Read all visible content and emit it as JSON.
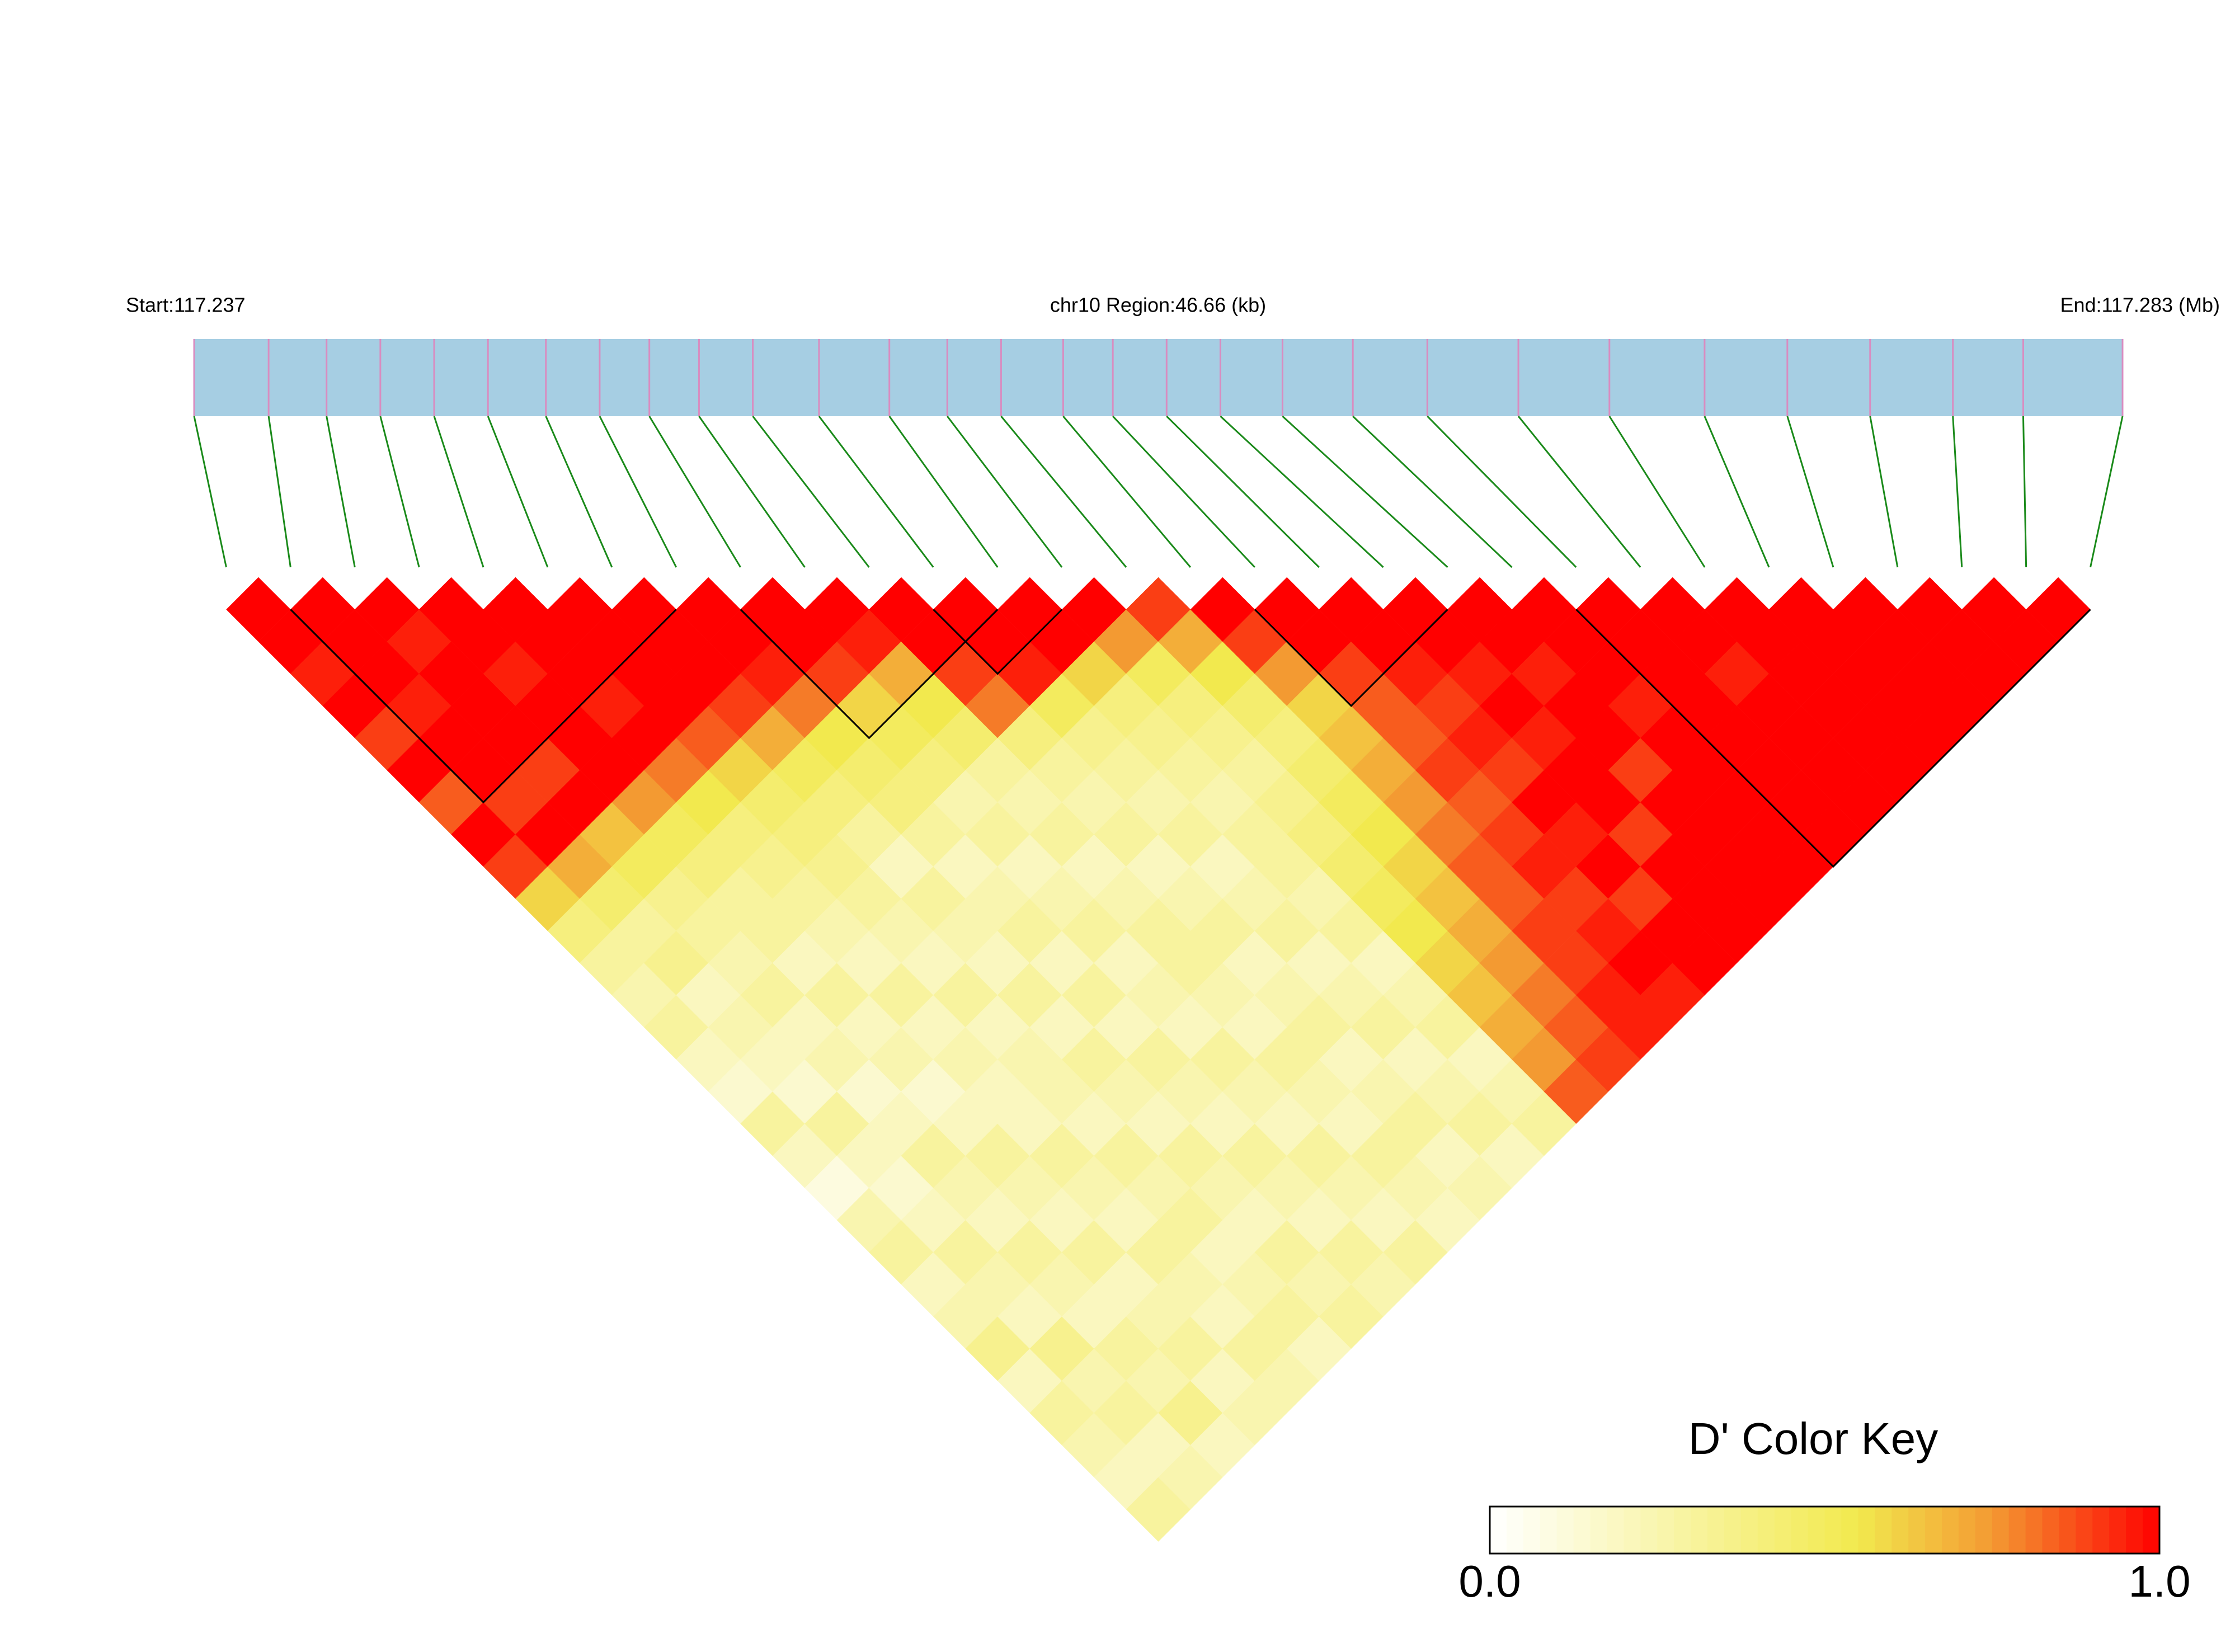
{
  "chart_data": {
    "type": "ld-heatmap",
    "start_label": "Start:117.237",
    "region_label": "chr10 Region:46.66 (kb)",
    "end_label": "End:117.283 (Mb)",
    "colorbar_title": "D' Color Key",
    "colorbar_ticks": [
      {
        "value": 0,
        "label": "0.0"
      },
      {
        "value": 1,
        "label": "1.0"
      }
    ],
    "colors": [
      "#ffffff",
      "#f2e94e",
      "#f39a32",
      "#ff0000"
    ],
    "color_stops": [
      0,
      0.55,
      0.75,
      1
    ],
    "bar_color": "#a6cee3",
    "connector_color": "#1a8a1a",
    "snp_tick_color": "#d98cc0",
    "block_color": "#000000",
    "positions": [
      117.237,
      117.2388,
      117.2402,
      117.2415,
      117.2428,
      117.2441,
      117.2455,
      117.2468,
      117.248,
      117.2492,
      117.2505,
      117.2521,
      117.2538,
      117.2552,
      117.2565,
      117.258,
      117.2592,
      117.2605,
      117.2618,
      117.2633,
      117.265,
      117.2668,
      117.269,
      117.2712,
      117.2735,
      117.2755,
      117.2775,
      117.2795,
      117.2812,
      117.2836
    ],
    "blocks": [
      [
        1,
        7
      ],
      [
        8,
        12
      ],
      [
        11,
        13
      ],
      [
        16,
        19
      ],
      [
        21,
        29
      ]
    ],
    "matrix": [
      [
        1,
        1,
        0.95,
        1,
        0.9,
        1,
        0.85,
        1,
        0.9,
        0.6,
        0.4,
        0.3,
        0.25,
        0.3,
        0.2,
        0.15,
        0.3,
        0.2,
        0.1,
        0.25,
        0.3,
        0.2,
        0.25,
        0.35,
        0.2,
        0.3,
        0.25,
        0.2,
        0.3
      ],
      [
        1,
        1,
        1,
        0.95,
        1,
        1,
        0.9,
        1,
        0.7,
        0.45,
        0.3,
        0.35,
        0.2,
        0.25,
        0.2,
        0.15,
        0.3,
        0.2,
        0.15,
        0.2,
        0.3,
        0.25,
        0.2,
        0.35,
        0.25,
        0.3,
        0.2,
        0.25
      ],
      [
        1,
        0.95,
        1,
        1,
        1,
        0.9,
        1,
        0.65,
        0.5,
        0.35,
        0.3,
        0.25,
        0.3,
        0.2,
        0.25,
        0.15,
        0.2,
        0.3,
        0.25,
        0.2,
        0.3,
        0.25,
        0.2,
        0.3,
        0.25,
        0.35,
        0.2
      ],
      [
        1,
        1,
        0.95,
        1,
        1,
        1,
        0.75,
        0.5,
        0.4,
        0.3,
        0.3,
        0.2,
        0.3,
        0.2,
        0.25,
        0.15,
        0.2,
        0.3,
        0.25,
        0.2,
        0.3,
        0.2,
        0.25,
        0.3,
        0.2,
        0.25
      ],
      [
        1,
        1,
        1,
        0.95,
        1,
        0.8,
        0.55,
        0.4,
        0.35,
        0.3,
        0.25,
        0.2,
        0.3,
        0.2,
        0.25,
        0.2,
        0.2,
        0.3,
        0.25,
        0.2,
        0.3,
        0.25,
        0.2,
        0.3,
        0.25
      ],
      [
        1,
        1,
        1,
        1,
        0.85,
        0.6,
        0.45,
        0.4,
        0.35,
        0.3,
        0.25,
        0.2,
        0.3,
        0.2,
        0.25,
        0.25,
        0.2,
        0.3,
        0.25,
        0.3,
        0.2,
        0.25,
        0.3,
        0.2
      ],
      [
        1,
        1,
        1,
        0.9,
        0.7,
        0.5,
        0.4,
        0.3,
        0.2,
        0.3,
        0.25,
        0.2,
        0.3,
        0.2,
        0.3,
        0.25,
        0.2,
        0.3,
        0.25,
        0.2,
        0.3,
        0.25,
        0.3
      ],
      [
        1,
        1,
        0.95,
        0.8,
        0.55,
        0.45,
        0.4,
        0.3,
        0.2,
        0.25,
        0.3,
        0.2,
        0.3,
        0.2,
        0.3,
        0.25,
        0.2,
        0.3,
        0.25,
        0.2,
        0.3,
        0.25
      ],
      [
        1,
        1,
        0.9,
        0.6,
        0.5,
        0.4,
        0.25,
        0.3,
        0.2,
        0.25,
        0.3,
        0.2,
        0.25,
        0.2,
        0.3,
        0.25,
        0.2,
        0.3,
        0.25,
        0.2,
        0.3
      ],
      [
        1,
        0.95,
        0.7,
        0.55,
        0.45,
        0.3,
        0.25,
        0.3,
        0.2,
        0.25,
        0.3,
        0.3,
        0.25,
        0.2,
        0.3,
        0.25,
        0.2,
        0.3,
        0.25,
        0.2
      ],
      [
        1,
        1,
        0.9,
        0.8,
        0.4,
        0.3,
        0.25,
        0.3,
        0.2,
        0.25,
        0.3,
        0.2,
        0.25,
        0.3,
        0.2,
        0.25,
        0.3,
        0.2,
        0.25
      ],
      [
        1,
        1,
        0.95,
        0.5,
        0.35,
        0.3,
        0.25,
        0.3,
        0.2,
        0.25,
        0.3,
        0.2,
        0.25,
        0.3,
        0.2,
        0.25,
        0.3,
        0.2
      ],
      [
        1,
        1,
        0.6,
        0.4,
        0.35,
        0.3,
        0.25,
        0.3,
        0.3,
        0.25,
        0.3,
        0.2,
        0.25,
        0.3,
        0.2,
        0.25,
        0.3
      ],
      [
        1,
        0.75,
        0.5,
        0.4,
        0.35,
        0.3,
        0.35,
        0.4,
        0.45,
        0.5,
        0.55,
        0.6,
        0.65,
        0.7,
        0.75,
        0.85
      ],
      [
        0.9,
        0.7,
        0.55,
        0.45,
        0.4,
        0.45,
        0.5,
        0.55,
        0.6,
        0.65,
        0.7,
        0.75,
        0.8,
        0.85,
        0.9
      ],
      [
        1,
        0.9,
        0.75,
        0.6,
        0.65,
        0.7,
        0.75,
        0.8,
        0.85,
        0.85,
        0.9,
        0.9,
        0.95,
        0.95
      ],
      [
        1,
        1,
        0.9,
        0.85,
        0.85,
        0.9,
        0.85,
        0.9,
        0.95,
        0.9,
        0.95,
        1,
        0.95
      ],
      [
        1,
        1,
        0.95,
        0.9,
        0.95,
        0.9,
        1,
        0.95,
        1,
        0.9,
        1,
        1
      ],
      [
        1,
        1,
        0.95,
        1,
        0.95,
        1,
        1,
        0.9,
        1,
        1,
        1
      ],
      [
        1,
        1,
        0.95,
        1,
        1,
        0.9,
        1,
        1,
        1,
        1
      ],
      [
        1,
        1,
        1,
        0.95,
        1,
        1,
        1,
        1,
        1
      ],
      [
        1,
        1,
        1,
        1,
        1,
        1,
        1,
        1
      ],
      [
        1,
        1,
        0.95,
        1,
        1,
        1,
        1
      ],
      [
        1,
        1,
        1,
        1,
        1,
        1
      ],
      [
        1,
        1,
        1,
        1,
        1
      ],
      [
        1,
        1,
        1,
        1
      ],
      [
        1,
        1,
        1
      ],
      [
        1,
        1
      ],
      [
        1
      ]
    ]
  }
}
